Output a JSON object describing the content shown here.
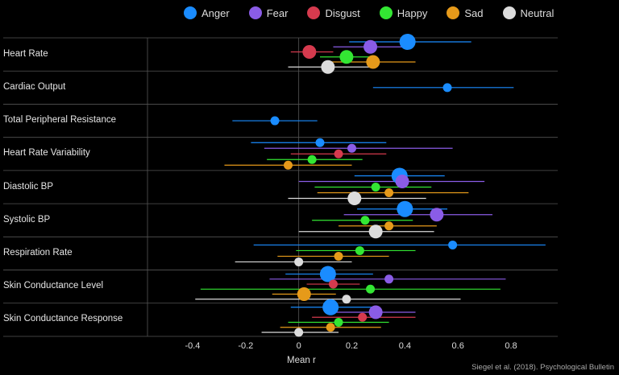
{
  "chart_data": {
    "type": "scatter",
    "subtype": "forest-plot",
    "xlabel": "Mean r",
    "xlim": [
      -0.57,
      0.97
    ],
    "xticks": [
      "-0.4",
      "-0.2",
      "0",
      "0.2",
      "0.4",
      "0.6",
      "0.8"
    ],
    "xtick_values": [
      -0.4,
      -0.2,
      0,
      0.2,
      0.4,
      0.6,
      0.8
    ],
    "legend_position": "top",
    "background": "#000000",
    "series": [
      {
        "name": "Anger",
        "color": "#1a8cff"
      },
      {
        "name": "Fear",
        "color": "#8a5ce6"
      },
      {
        "name": "Disgust",
        "color": "#d63a4e"
      },
      {
        "name": "Happy",
        "color": "#33e633"
      },
      {
        "name": "Sad",
        "color": "#e69a1a"
      },
      {
        "name": "Neutral",
        "color": "#dcdcdc"
      }
    ],
    "rows": [
      {
        "label": "Heart Rate",
        "points": [
          {
            "series": "Anger",
            "mean": 0.41,
            "lo": 0.19,
            "hi": 0.65,
            "size": "large"
          },
          {
            "series": "Fear",
            "mean": 0.27,
            "lo": 0.13,
            "hi": 0.41,
            "size": "medium"
          },
          {
            "series": "Disgust",
            "mean": 0.04,
            "lo": -0.03,
            "hi": 0.13,
            "size": "medium"
          },
          {
            "series": "Happy",
            "mean": 0.18,
            "lo": 0.08,
            "hi": 0.27,
            "size": "medium"
          },
          {
            "series": "Sad",
            "mean": 0.28,
            "lo": 0.1,
            "hi": 0.44,
            "size": "medium"
          },
          {
            "series": "Neutral",
            "mean": 0.11,
            "lo": -0.04,
            "hi": 0.27,
            "size": "medium"
          }
        ]
      },
      {
        "label": "Cardiac Output",
        "points": [
          {
            "series": "Anger",
            "mean": 0.56,
            "lo": 0.28,
            "hi": 0.81,
            "size": "small"
          }
        ]
      },
      {
        "label": "Total Peripheral Resistance",
        "points": [
          {
            "series": "Anger",
            "mean": -0.09,
            "lo": -0.25,
            "hi": 0.07,
            "size": "small"
          }
        ]
      },
      {
        "label": "Heart Rate Variability",
        "points": [
          {
            "series": "Anger",
            "mean": 0.08,
            "lo": -0.18,
            "hi": 0.33,
            "size": "small"
          },
          {
            "series": "Fear",
            "mean": 0.2,
            "lo": -0.13,
            "hi": 0.58,
            "size": "small"
          },
          {
            "series": "Disgust",
            "mean": 0.15,
            "lo": -0.03,
            "hi": 0.33,
            "size": "small"
          },
          {
            "series": "Happy",
            "mean": 0.05,
            "lo": -0.12,
            "hi": 0.24,
            "size": "small"
          },
          {
            "series": "Sad",
            "mean": -0.04,
            "lo": -0.28,
            "hi": 0.2,
            "size": "small"
          }
        ]
      },
      {
        "label": "Diastolic BP",
        "points": [
          {
            "series": "Anger",
            "mean": 0.38,
            "lo": 0.21,
            "hi": 0.55,
            "size": "large"
          },
          {
            "series": "Fear",
            "mean": 0.39,
            "lo": 0.0,
            "hi": 0.7,
            "size": "medium"
          },
          {
            "series": "Happy",
            "mean": 0.29,
            "lo": 0.06,
            "hi": 0.5,
            "size": "small"
          },
          {
            "series": "Sad",
            "mean": 0.34,
            "lo": 0.07,
            "hi": 0.64,
            "size": "small"
          },
          {
            "series": "Neutral",
            "mean": 0.21,
            "lo": -0.04,
            "hi": 0.48,
            "size": "medium"
          }
        ]
      },
      {
        "label": "Systolic BP",
        "points": [
          {
            "series": "Anger",
            "mean": 0.4,
            "lo": 0.22,
            "hi": 0.56,
            "size": "large"
          },
          {
            "series": "Fear",
            "mean": 0.52,
            "lo": 0.17,
            "hi": 0.73,
            "size": "medium"
          },
          {
            "series": "Happy",
            "mean": 0.25,
            "lo": 0.05,
            "hi": 0.43,
            "size": "small"
          },
          {
            "series": "Sad",
            "mean": 0.34,
            "lo": 0.15,
            "hi": 0.52,
            "size": "small"
          },
          {
            "series": "Neutral",
            "mean": 0.29,
            "lo": 0.0,
            "hi": 0.51,
            "size": "medium"
          }
        ]
      },
      {
        "label": "Respiration Rate",
        "points": [
          {
            "series": "Anger",
            "mean": 0.58,
            "lo": -0.17,
            "hi": 0.93,
            "size": "small"
          },
          {
            "series": "Happy",
            "mean": 0.23,
            "lo": -0.01,
            "hi": 0.44,
            "size": "small"
          },
          {
            "series": "Sad",
            "mean": 0.15,
            "lo": -0.08,
            "hi": 0.34,
            "size": "small"
          },
          {
            "series": "Neutral",
            "mean": 0.0,
            "lo": -0.24,
            "hi": 0.2,
            "size": "small"
          }
        ]
      },
      {
        "label": "Skin Conductance Level",
        "points": [
          {
            "series": "Anger",
            "mean": 0.11,
            "lo": -0.05,
            "hi": 0.28,
            "size": "large"
          },
          {
            "series": "Fear",
            "mean": 0.34,
            "lo": -0.11,
            "hi": 0.78,
            "size": "small"
          },
          {
            "series": "Disgust",
            "mean": 0.13,
            "lo": 0.03,
            "hi": 0.23,
            "size": "small"
          },
          {
            "series": "Happy",
            "mean": 0.27,
            "lo": -0.37,
            "hi": 0.76,
            "size": "small"
          },
          {
            "series": "Sad",
            "mean": 0.02,
            "lo": -0.1,
            "hi": 0.14,
            "size": "medium"
          },
          {
            "series": "Neutral",
            "mean": 0.18,
            "lo": -0.39,
            "hi": 0.61,
            "size": "small"
          }
        ]
      },
      {
        "label": "Skin Conductance Response",
        "points": [
          {
            "series": "Anger",
            "mean": 0.12,
            "lo": -0.03,
            "hi": 0.28,
            "size": "large"
          },
          {
            "series": "Fear",
            "mean": 0.29,
            "lo": 0.13,
            "hi": 0.44,
            "size": "medium"
          },
          {
            "series": "Disgust",
            "mean": 0.24,
            "lo": 0.05,
            "hi": 0.44,
            "size": "small"
          },
          {
            "series": "Happy",
            "mean": 0.15,
            "lo": -0.04,
            "hi": 0.34,
            "size": "small"
          },
          {
            "series": "Sad",
            "mean": 0.12,
            "lo": -0.07,
            "hi": 0.31,
            "size": "small"
          },
          {
            "series": "Neutral",
            "mean": 0.0,
            "lo": -0.14,
            "hi": 0.15,
            "size": "small"
          }
        ]
      }
    ],
    "credit": "Siegel et al. (2018). Psychological Bulletin"
  }
}
